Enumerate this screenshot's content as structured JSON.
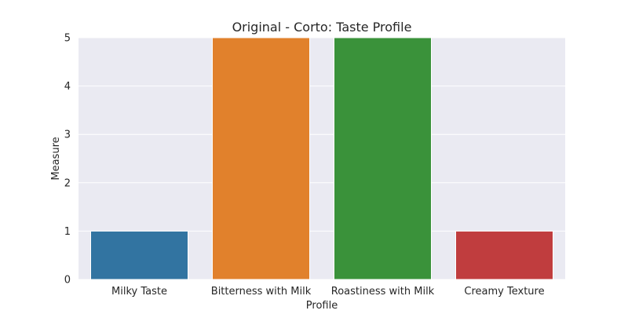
{
  "chart_data": {
    "type": "bar",
    "title": "Original - Corto: Taste Profile",
    "xlabel": "Profile",
    "ylabel": "Measure",
    "categories": [
      "Milky Taste",
      "Bitterness with Milk",
      "Roastiness with Milk",
      "Creamy Texture"
    ],
    "values": [
      1,
      5,
      5,
      1
    ],
    "colors": [
      "#3274a1",
      "#e1812c",
      "#3a923a",
      "#c03d3e"
    ],
    "ylim": [
      0,
      5
    ],
    "yticks": [
      "0",
      "1",
      "2",
      "3",
      "4",
      "5"
    ],
    "grid": true,
    "background": "#eaeaf2"
  }
}
